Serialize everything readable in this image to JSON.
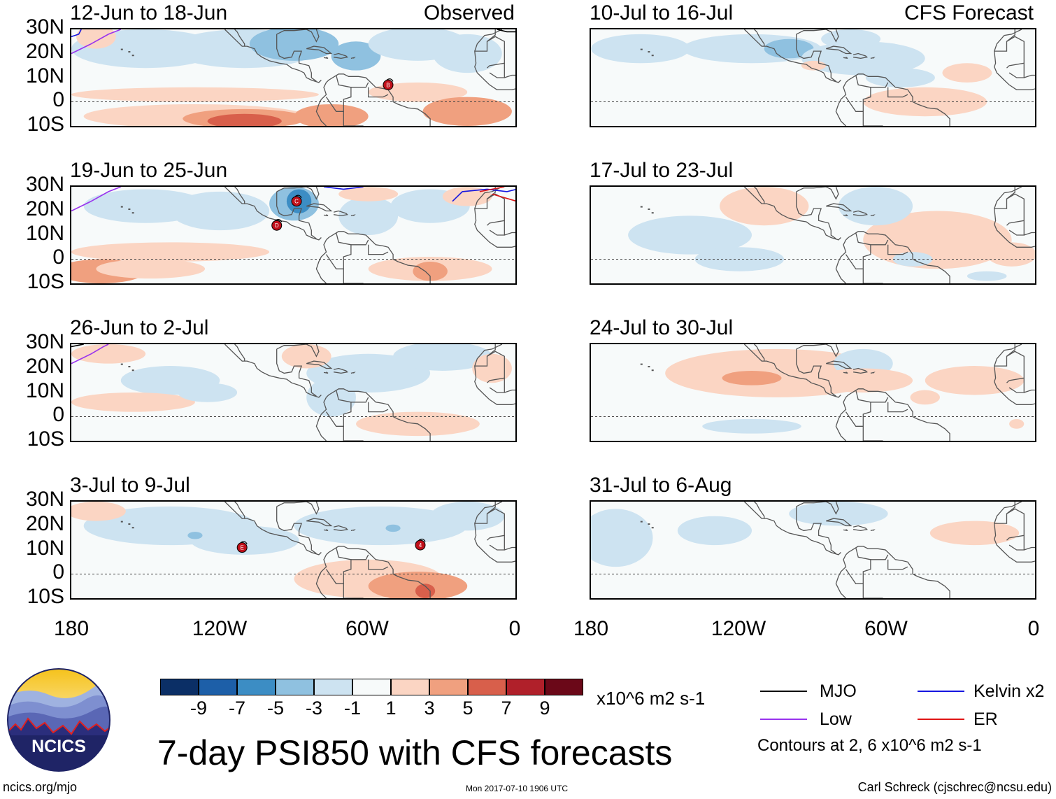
{
  "title": "7-day PSI850 with CFS forecasts",
  "observed_label": "Observed",
  "forecast_label": "CFS Forecast",
  "lat_labels": [
    "30N",
    "20N",
    "10N",
    "0",
    "10S"
  ],
  "lon_labels": [
    "180",
    "120W",
    "60W",
    "0"
  ],
  "panels_observed": [
    {
      "title": "12-Jun to 18-Jun",
      "storms": [
        {
          "label": "B",
          "lon": -52,
          "lat": 7
        }
      ]
    },
    {
      "title": "19-Jun to 25-Jun",
      "storms": [
        {
          "label": "C",
          "lon": -89,
          "lat": 24
        },
        {
          "label": "D",
          "lon": -97,
          "lat": 14
        }
      ]
    },
    {
      "title": "26-Jun to 2-Jul",
      "storms": []
    },
    {
      "title": "3-Jul to 9-Jul",
      "storms": [
        {
          "label": "E",
          "lon": -111,
          "lat": 11
        },
        {
          "label": "4",
          "lon": -39,
          "lat": 12
        }
      ]
    }
  ],
  "panels_forecast": [
    {
      "title": "10-Jul to 16-Jul"
    },
    {
      "title": "17-Jul to 23-Jul"
    },
    {
      "title": "24-Jul to 30-Jul"
    },
    {
      "title": "31-Jul to 6-Aug"
    }
  ],
  "colorbar": {
    "labels": [
      "-9",
      "-7",
      "-5",
      "-3",
      "-1",
      "1",
      "3",
      "5",
      "7",
      "9"
    ],
    "colors": [
      "#0b2f66",
      "#1d5fa8",
      "#3c8dc4",
      "#8fc1e0",
      "#cde3f1",
      "#f7fafa",
      "#fbd5c3",
      "#f0a07f",
      "#d85f4b",
      "#b0202a",
      "#6b0818"
    ],
    "units": "x10^6 m2 s-1"
  },
  "legend": [
    {
      "label": "MJO",
      "color": "#000000"
    },
    {
      "label": "Kelvin x2",
      "color": "#1616e0"
    },
    {
      "label": "Low",
      "color": "#9933ee"
    },
    {
      "label": "ER",
      "color": "#e01616"
    }
  ],
  "contour_note": "Contours at 2, 6 x10^6 m2 s-1",
  "logo_text": "NCICS",
  "footer_left": "ncics.org/mjo",
  "footer_mid": "Mon 2017-07-10 1906 UTC",
  "footer_right": "Carl Schreck (cjschrec@ncsu.edu)"
}
